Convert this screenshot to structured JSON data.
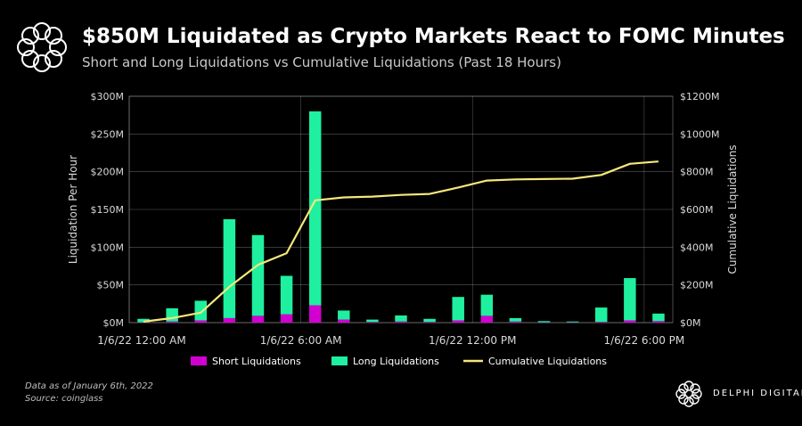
{
  "header": {
    "title": "$850M Liquidated as Crypto Markets React to FOMC Minutes",
    "subtitle": "Short and Long Liquidations vs Cumulative Liquidations (Past 18 Hours)"
  },
  "footer": {
    "data_note": "Data as of January 6th, 2022",
    "source": "Source: coinglass",
    "brand": "DELPHI DIGITAL"
  },
  "colors": {
    "short": "#d100d1",
    "long": "#1ef0a0",
    "cumulative": "#f5e77a",
    "background": "#000000",
    "axis": "#d9d9d9",
    "grid": "#ffffff"
  },
  "chart_data": {
    "type": "bar",
    "title": "$850M Liquidated as Crypto Markets React to FOMC Minutes",
    "ylabel": "Liquidation Per Hour",
    "y2label": "Cumulative Liquidations",
    "ylim": [
      0,
      300
    ],
    "y2lim": [
      0,
      1200
    ],
    "yticks": [
      "$0M",
      "$50M",
      "$100M",
      "$150M",
      "$200M",
      "$250M",
      "$300M"
    ],
    "y2ticks": [
      "$0M",
      "$200M",
      "$400M",
      "$600M",
      "$800M",
      "$1000M",
      "$1200M"
    ],
    "xticks": [
      {
        "index": 0,
        "label": "1/6/22 12:00 AM"
      },
      {
        "index": 6,
        "label": "1/6/22 6:00 AM"
      },
      {
        "index": 12,
        "label": "1/6/22 12:00 PM"
      },
      {
        "index": 18,
        "label": "1/6/22 6:00 PM"
      }
    ],
    "x": [
      "0",
      "1",
      "2",
      "3",
      "4",
      "5",
      "6",
      "7",
      "8",
      "9",
      "10",
      "11",
      "12",
      "13",
      "14",
      "15",
      "16",
      "17",
      "18"
    ],
    "series": [
      {
        "name": "Short Liquidations",
        "values": [
          0.5,
          1.5,
          3,
          6,
          9,
          11,
          23,
          4,
          1,
          1.5,
          1,
          3,
          9,
          1.5,
          0.5,
          0.5,
          1,
          3,
          2
        ]
      },
      {
        "name": "Long Liquidations",
        "values": [
          4.5,
          17.5,
          26,
          131,
          107,
          51,
          257,
          12,
          3,
          8,
          4,
          31,
          28,
          4.5,
          1.5,
          1,
          19,
          56,
          10
        ]
      },
      {
        "name": "Cumulative Liquidations",
        "axis": "right",
        "values": [
          5,
          24,
          53,
          190,
          306,
          368,
          648,
          664,
          668,
          677,
          682,
          716,
          753,
          759,
          761,
          763,
          783,
          842,
          854
        ]
      }
    ],
    "legend": [
      "Short Liquidations",
      "Long Liquidations",
      "Cumulative Liquidations"
    ],
    "legend_position": "bottom"
  }
}
